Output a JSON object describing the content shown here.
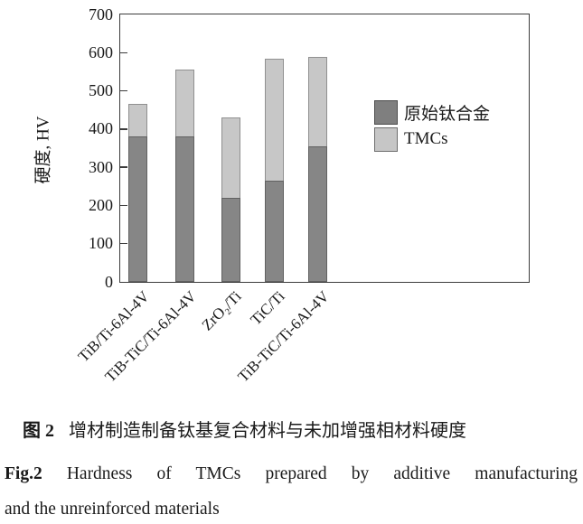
{
  "chart_data": {
    "type": "bar",
    "stacked": true,
    "title": "",
    "xlabel": "",
    "ylabel": "硬度, HV",
    "ylim": [
      0,
      700
    ],
    "yticks": [
      0,
      100,
      200,
      300,
      400,
      500,
      600,
      700
    ],
    "grid": false,
    "legend_position": "center-right",
    "categories": [
      "TiB/Ti-6Al-4V",
      "TiB-TiC/Ti-6Al-4V",
      "ZrO₂/Ti",
      "TiC/Ti",
      "TiB-TiC/Ti-6Al-4V"
    ],
    "series": [
      {
        "name": "原始钛合金",
        "color": "#868686",
        "values": [
          380,
          380,
          220,
          265,
          355
        ]
      },
      {
        "name": "TMCs",
        "color": "#c7c7c7",
        "values": [
          85,
          175,
          210,
          320,
          235
        ]
      }
    ],
    "stack_totals": [
      465,
      555,
      430,
      585,
      590
    ]
  },
  "legend": {
    "items": [
      {
        "label": "原始钛合金",
        "color": "#7f7f7f"
      },
      {
        "label": "TMCs",
        "color": "#c6c6c6"
      }
    ]
  },
  "caption": {
    "zh_label": "图 2",
    "zh_text": "增材制造制备钛基复合材料与未加增强相材料硬度",
    "en_label": "Fig.2",
    "en_line1": "Hardness of TMCs prepared by additive manufacturing",
    "en_line2": "and the unreinforced materials"
  }
}
